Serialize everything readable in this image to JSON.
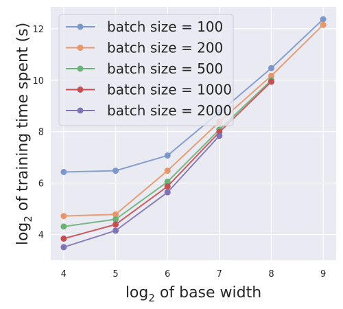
{
  "chart_data": {
    "type": "line",
    "xlabel": {
      "prefix": "log",
      "sub": "2",
      "suffix": " of base width"
    },
    "ylabel": {
      "prefix": "log",
      "sub": "2",
      "suffix": " of training time spent (s)"
    },
    "xlim": [
      3.75,
      9.25
    ],
    "ylim": [
      3.0,
      12.85
    ],
    "xticks": [
      4,
      5,
      6,
      7,
      8,
      9
    ],
    "yticks": [
      4,
      6,
      8,
      10,
      12
    ],
    "grid": true,
    "legend_position": "upper-left",
    "x": [
      4,
      5,
      6,
      7,
      8,
      9
    ],
    "series": [
      {
        "name": "batch size = 100",
        "color": "#7b97cb",
        "values": [
          6.43,
          6.48,
          7.07,
          8.75,
          10.47,
          12.37
        ]
      },
      {
        "name": "batch size = 200",
        "color": "#e5966b",
        "values": [
          4.72,
          4.78,
          6.48,
          8.38,
          10.17,
          12.15
        ]
      },
      {
        "name": "batch size = 500",
        "color": "#6ab278",
        "values": [
          4.31,
          4.59,
          6.05,
          8.08,
          10.0,
          null
        ]
      },
      {
        "name": "batch size = 1000",
        "color": "#c44e52",
        "values": [
          3.84,
          4.39,
          5.87,
          7.98,
          9.94,
          null
        ]
      },
      {
        "name": "batch size = 2000",
        "color": "#8172b3",
        "values": [
          3.51,
          4.15,
          5.64,
          7.84,
          null,
          null
        ]
      }
    ]
  }
}
